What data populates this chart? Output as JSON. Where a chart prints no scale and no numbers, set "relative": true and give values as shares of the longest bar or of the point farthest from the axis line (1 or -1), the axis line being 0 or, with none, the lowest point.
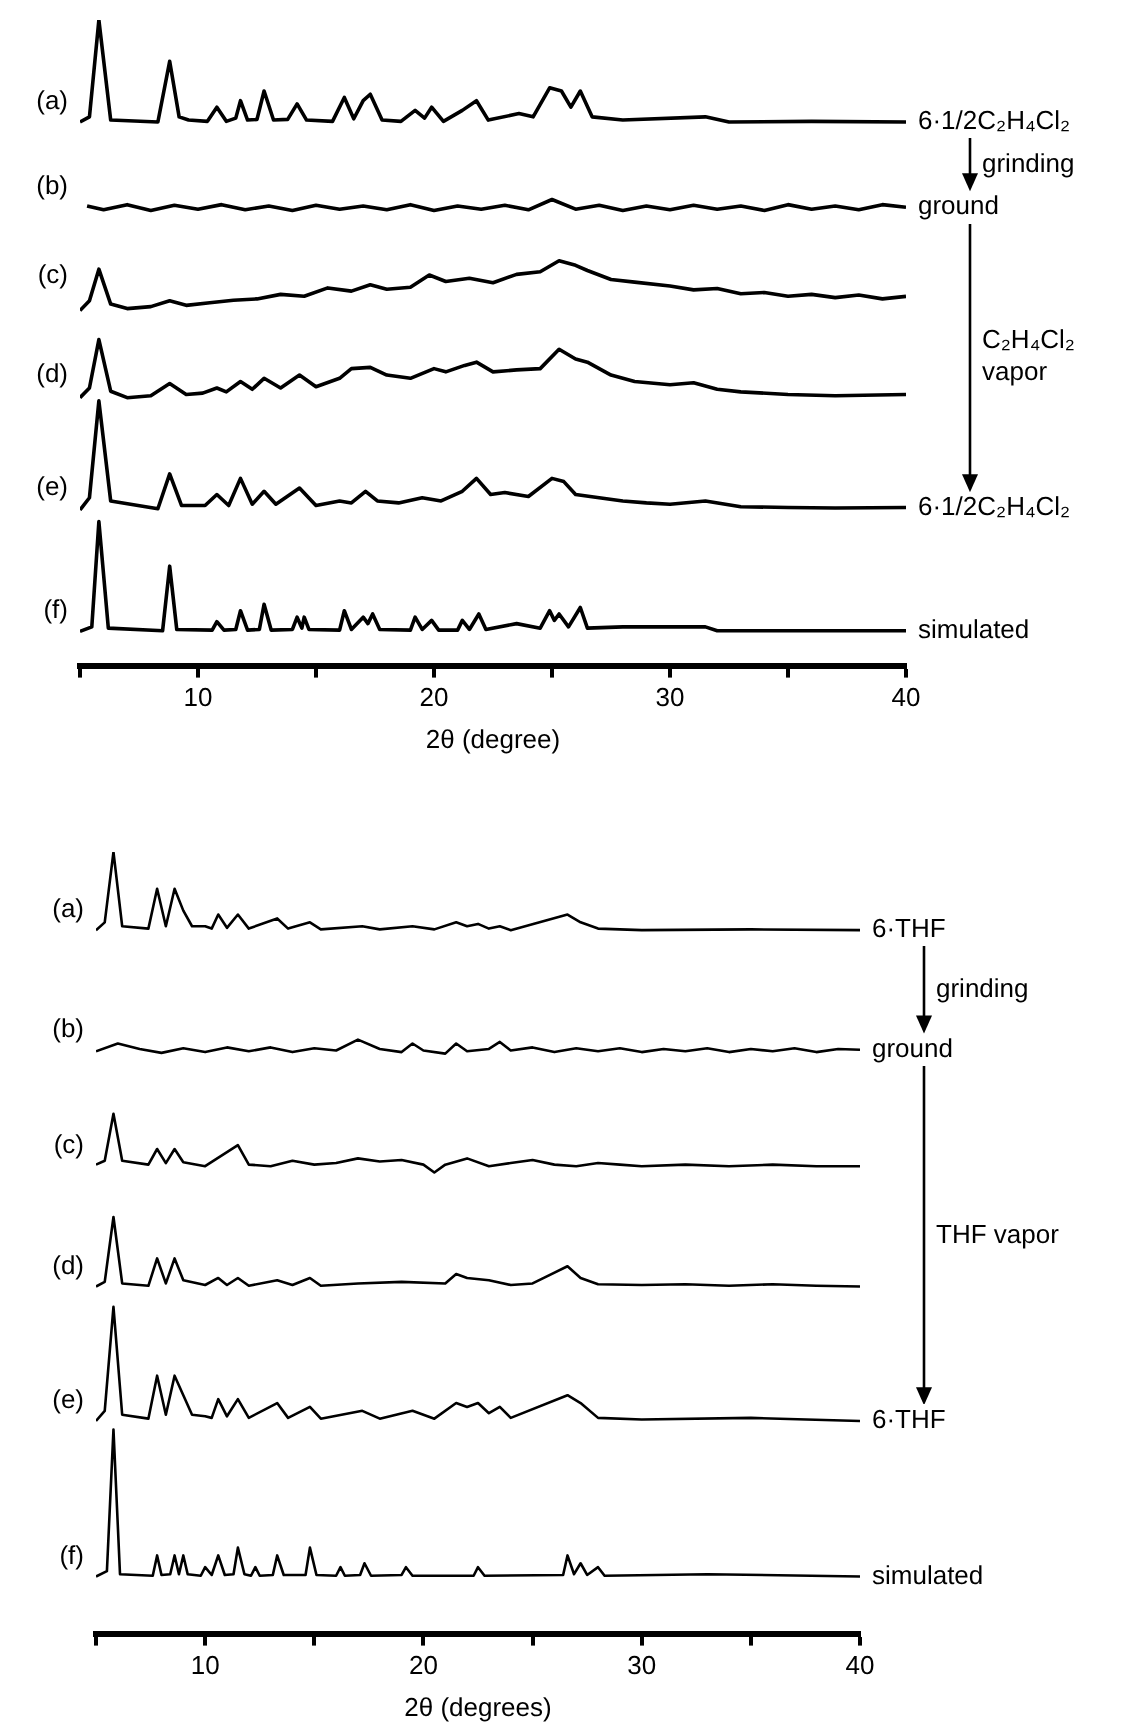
{
  "chart_data": [
    {
      "type": "line",
      "relative": true,
      "xlabel": "2θ (degree)",
      "xlim": [
        5,
        40
      ],
      "xticks": [
        {
          "value": 5,
          "label": null
        },
        10,
        {
          "value": 15,
          "label": null
        },
        20,
        {
          "value": 25,
          "label": null
        },
        30,
        {
          "value": 35,
          "label": null
        },
        40
      ],
      "annotations": [
        "6·1/2C₂H₄Cl₂",
        "grinding",
        "ground",
        "C₂H₄Cl₂ vapor",
        "6·1/2C₂H₄Cl₂",
        "simulated"
      ],
      "series": [
        {
          "name": "(a)",
          "color": "#000000",
          "x": [
            5,
            5.4,
            5.8,
            6.3,
            8.3,
            8.8,
            9.2,
            9.6,
            10.4,
            10.8,
            11.2,
            11.6,
            11.8,
            12.1,
            12.5,
            12.8,
            13.2,
            13.8,
            14.2,
            14.6,
            15.7,
            16.2,
            16.6,
            17.0,
            17.3,
            17.8,
            18.6,
            19.2,
            19.6,
            19.9,
            20.4,
            21.2,
            21.8,
            22.3,
            23.6,
            24.2,
            24.9,
            25.4,
            25.8,
            26.2,
            26.7,
            28,
            31.5,
            32.5,
            36,
            40
          ],
          "values": [
            0.842,
            0.85,
            1.0,
            0.845,
            0.842,
            0.936,
            0.85,
            0.845,
            0.843,
            0.865,
            0.843,
            0.848,
            0.875,
            0.845,
            0.846,
            0.89,
            0.845,
            0.846,
            0.87,
            0.845,
            0.843,
            0.88,
            0.847,
            0.875,
            0.885,
            0.845,
            0.843,
            0.86,
            0.848,
            0.865,
            0.843,
            0.86,
            0.875,
            0.845,
            0.855,
            0.85,
            0.895,
            0.89,
            0.865,
            0.89,
            0.85,
            0.845,
            0.85,
            0.842,
            0.843,
            0.842
          ]
        },
        {
          "name": "(b)",
          "color": "#000000",
          "x": [
            5.3,
            6,
            7,
            8,
            9,
            10,
            11,
            12,
            13,
            14,
            15,
            16,
            17,
            18,
            19,
            20,
            21,
            22,
            23,
            24,
            25,
            26,
            27,
            28,
            29,
            30,
            31,
            32,
            33,
            34,
            35,
            36,
            37,
            38,
            39,
            40
          ],
          "values": [
            0.712,
            0.706,
            0.714,
            0.705,
            0.713,
            0.707,
            0.714,
            0.706,
            0.712,
            0.705,
            0.713,
            0.707,
            0.712,
            0.706,
            0.714,
            0.705,
            0.712,
            0.707,
            0.713,
            0.706,
            0.722,
            0.707,
            0.713,
            0.705,
            0.712,
            0.706,
            0.713,
            0.707,
            0.712,
            0.705,
            0.714,
            0.707,
            0.712,
            0.706,
            0.714,
            0.71
          ]
        },
        {
          "name": "(c)",
          "color": "#000000",
          "x": [
            5,
            5.4,
            5.8,
            6.3,
            7,
            8,
            8.8,
            9.5,
            10.5,
            11.5,
            12.5,
            13.5,
            14.5,
            15.5,
            16.5,
            17.3,
            18,
            19,
            19.8,
            20.5,
            21.5,
            22.5,
            23.5,
            24.5,
            25.3,
            26,
            26.5,
            27.5,
            28.5,
            30,
            31,
            32,
            33,
            34,
            35,
            36,
            37,
            38,
            39,
            40
          ],
          "values": [
            0.55,
            0.565,
            0.614,
            0.56,
            0.553,
            0.556,
            0.565,
            0.558,
            0.562,
            0.566,
            0.568,
            0.575,
            0.572,
            0.585,
            0.58,
            0.59,
            0.583,
            0.586,
            0.605,
            0.595,
            0.6,
            0.593,
            0.606,
            0.61,
            0.627,
            0.62,
            0.612,
            0.598,
            0.594,
            0.588,
            0.582,
            0.584,
            0.576,
            0.578,
            0.572,
            0.575,
            0.57,
            0.574,
            0.568,
            0.572
          ]
        },
        {
          "name": "(d)",
          "color": "#000000",
          "x": [
            5,
            5.4,
            5.8,
            6.3,
            7,
            8,
            8.8,
            9.5,
            10.2,
            10.8,
            11.2,
            11.8,
            12.3,
            12.8,
            13.5,
            14.3,
            15,
            16,
            16.5,
            17.3,
            18,
            19,
            20,
            20.5,
            21.3,
            21.8,
            22.5,
            23.5,
            24.5,
            25.3,
            26,
            26.5,
            27.5,
            28.5,
            30,
            31,
            32,
            33,
            35,
            37,
            40
          ],
          "values": [
            0.415,
            0.43,
            0.505,
            0.425,
            0.415,
            0.418,
            0.437,
            0.42,
            0.422,
            0.43,
            0.424,
            0.44,
            0.428,
            0.445,
            0.43,
            0.45,
            0.432,
            0.445,
            0.46,
            0.462,
            0.45,
            0.445,
            0.46,
            0.455,
            0.465,
            0.47,
            0.455,
            0.458,
            0.46,
            0.49,
            0.475,
            0.47,
            0.45,
            0.44,
            0.435,
            0.438,
            0.428,
            0.424,
            0.42,
            0.418,
            0.42
          ]
        },
        {
          "name": "(e)",
          "color": "#000000",
          "x": [
            5,
            5.4,
            5.8,
            6.3,
            8.3,
            8.8,
            9.3,
            10.3,
            10.8,
            11.3,
            11.8,
            12.3,
            12.8,
            13.3,
            14.3,
            15,
            16,
            16.5,
            17.1,
            17.6,
            18.5,
            19.5,
            20.3,
            21.2,
            21.8,
            22.4,
            23,
            24,
            25,
            25.5,
            26,
            27,
            28,
            29,
            30,
            31.5,
            33,
            35,
            37,
            40
          ],
          "values": [
            0.241,
            0.26,
            0.41,
            0.255,
            0.243,
            0.297,
            0.248,
            0.248,
            0.265,
            0.248,
            0.29,
            0.25,
            0.27,
            0.25,
            0.275,
            0.248,
            0.255,
            0.252,
            0.27,
            0.255,
            0.252,
            0.26,
            0.255,
            0.27,
            0.29,
            0.265,
            0.268,
            0.262,
            0.29,
            0.285,
            0.265,
            0.26,
            0.255,
            0.252,
            0.25,
            0.255,
            0.246,
            0.245,
            0.244,
            0.245
          ]
        },
        {
          "name": "(f)",
          "color": "#000000",
          "x": [
            5,
            5.5,
            5.8,
            6.2,
            8.5,
            8.8,
            9.1,
            10.6,
            10.8,
            11.1,
            11.6,
            11.8,
            12.1,
            12.6,
            12.8,
            13.1,
            14,
            14.2,
            14.4,
            14.5,
            14.7,
            16,
            16.2,
            16.5,
            17.0,
            17.2,
            17.4,
            17.7,
            19,
            19.2,
            19.5,
            19.9,
            20.2,
            21,
            21.2,
            21.5,
            21.9,
            22.2,
            23.5,
            24.5,
            24.9,
            25.1,
            25.3,
            25.7,
            26.2,
            26.5,
            28,
            31.5,
            32,
            40
          ],
          "values": [
            0.053,
            0.06,
            0.223,
            0.058,
            0.054,
            0.154,
            0.056,
            0.055,
            0.068,
            0.055,
            0.056,
            0.085,
            0.055,
            0.056,
            0.095,
            0.055,
            0.056,
            0.075,
            0.058,
            0.075,
            0.056,
            0.055,
            0.085,
            0.056,
            0.075,
            0.065,
            0.08,
            0.056,
            0.055,
            0.075,
            0.056,
            0.07,
            0.055,
            0.055,
            0.07,
            0.056,
            0.08,
            0.056,
            0.065,
            0.058,
            0.085,
            0.07,
            0.08,
            0.06,
            0.09,
            0.058,
            0.06,
            0.06,
            0.054,
            0.054
          ]
        }
      ]
    },
    {
      "type": "line",
      "relative": true,
      "xlabel": "2θ (degrees)",
      "xlim": [
        5,
        40
      ],
      "xticks": [
        {
          "value": 5,
          "label": null
        },
        10,
        {
          "value": 15,
          "label": null
        },
        20,
        {
          "value": 25,
          "label": null
        },
        30,
        {
          "value": 35,
          "label": null
        },
        40
      ],
      "annotations": [
        "6·THF",
        "grinding",
        "ground",
        "THF vapor",
        "6·THF",
        "simulated"
      ],
      "series": [
        {
          "name": "(a)",
          "color": "#000000",
          "x": [
            5,
            5.4,
            5.8,
            6.2,
            7.4,
            7.8,
            8.2,
            8.6,
            9.0,
            9.4,
            10.0,
            10.3,
            10.6,
            11.0,
            11.5,
            12,
            13.3,
            13.8,
            14.8,
            15.3,
            17.2,
            18,
            19.5,
            20.5,
            21.5,
            22,
            22.5,
            23,
            23.5,
            24,
            26.6,
            27.2,
            28,
            30,
            35,
            40
          ],
          "values": [
            0.9,
            0.91,
            1.0,
            0.905,
            0.902,
            0.953,
            0.905,
            0.953,
            0.925,
            0.905,
            0.905,
            0.902,
            0.92,
            0.903,
            0.92,
            0.902,
            0.915,
            0.902,
            0.91,
            0.901,
            0.905,
            0.901,
            0.905,
            0.901,
            0.91,
            0.905,
            0.908,
            0.902,
            0.905,
            0.9,
            0.92,
            0.91,
            0.902,
            0.9,
            0.901,
            0.9
          ]
        },
        {
          "name": "(b)",
          "color": "#000000",
          "x": [
            5,
            6,
            7,
            8,
            9,
            10,
            11,
            12,
            13,
            14,
            15,
            16,
            17,
            18,
            19,
            19.5,
            20,
            21,
            21.5,
            22,
            23,
            23.5,
            24,
            25,
            26,
            27,
            28,
            29,
            30,
            31,
            32,
            33,
            34,
            35,
            36,
            37,
            38,
            39,
            40
          ],
          "values": [
            0.745,
            0.755,
            0.748,
            0.743,
            0.749,
            0.744,
            0.75,
            0.745,
            0.75,
            0.744,
            0.749,
            0.746,
            0.76,
            0.748,
            0.744,
            0.755,
            0.746,
            0.742,
            0.755,
            0.745,
            0.748,
            0.757,
            0.746,
            0.75,
            0.744,
            0.749,
            0.745,
            0.749,
            0.744,
            0.748,
            0.745,
            0.749,
            0.744,
            0.748,
            0.745,
            0.749,
            0.744,
            0.748,
            0.747
          ]
        },
        {
          "name": "(c)",
          "color": "#000000",
          "x": [
            5,
            5.4,
            5.8,
            6.2,
            7.4,
            7.8,
            8.2,
            8.6,
            9,
            10,
            11.5,
            12,
            13,
            14,
            15,
            16,
            17,
            18,
            19,
            20,
            20.5,
            21,
            22,
            23,
            24,
            25,
            26,
            27,
            28,
            29,
            30,
            32,
            34,
            36,
            38,
            40
          ],
          "values": [
            0.6,
            0.605,
            0.665,
            0.605,
            0.6,
            0.62,
            0.602,
            0.62,
            0.603,
            0.598,
            0.625,
            0.6,
            0.598,
            0.605,
            0.6,
            0.602,
            0.608,
            0.604,
            0.606,
            0.6,
            0.59,
            0.6,
            0.608,
            0.598,
            0.602,
            0.606,
            0.6,
            0.598,
            0.602,
            0.6,
            0.598,
            0.6,
            0.598,
            0.6,
            0.598,
            0.598
          ]
        },
        {
          "name": "(d)",
          "color": "#000000",
          "x": [
            5,
            5.4,
            5.8,
            6.2,
            7.4,
            7.8,
            8.2,
            8.6,
            9,
            10,
            10.6,
            11,
            11.5,
            12,
            13.3,
            14,
            14.8,
            15.3,
            17,
            19,
            21,
            21.5,
            22,
            23,
            24,
            25,
            26.6,
            27.2,
            28,
            30,
            32,
            34,
            36,
            38,
            40
          ],
          "values": [
            0.444,
            0.45,
            0.533,
            0.448,
            0.445,
            0.48,
            0.448,
            0.48,
            0.452,
            0.446,
            0.455,
            0.446,
            0.455,
            0.445,
            0.452,
            0.446,
            0.455,
            0.445,
            0.448,
            0.45,
            0.448,
            0.46,
            0.455,
            0.452,
            0.446,
            0.448,
            0.47,
            0.455,
            0.447,
            0.446,
            0.447,
            0.445,
            0.447,
            0.445,
            0.444
          ]
        },
        {
          "name": "(e)",
          "color": "#000000",
          "x": [
            5,
            5.4,
            5.8,
            6.2,
            7.4,
            7.8,
            8.2,
            8.6,
            9.0,
            9.4,
            10.0,
            10.3,
            10.6,
            11.0,
            11.5,
            12,
            13.3,
            13.8,
            14.8,
            15.3,
            17.2,
            18,
            19.5,
            20.5,
            21.5,
            22,
            22.5,
            23,
            23.5,
            24,
            26.6,
            27.2,
            28,
            30,
            35,
            40
          ],
          "values": [
            0.272,
            0.285,
            0.418,
            0.28,
            0.275,
            0.33,
            0.28,
            0.33,
            0.305,
            0.28,
            0.278,
            0.276,
            0.3,
            0.278,
            0.3,
            0.276,
            0.295,
            0.276,
            0.29,
            0.275,
            0.285,
            0.275,
            0.285,
            0.275,
            0.295,
            0.29,
            0.295,
            0.282,
            0.29,
            0.276,
            0.305,
            0.295,
            0.276,
            0.274,
            0.276,
            0.272
          ]
        },
        {
          "name": "(f)",
          "color": "#000000",
          "x": [
            5,
            5.5,
            5.8,
            6.1,
            7.6,
            7.8,
            8.0,
            8.4,
            8.6,
            8.8,
            9.0,
            9.2,
            9.8,
            10.0,
            10.3,
            10.6,
            10.9,
            11.3,
            11.5,
            11.8,
            12.1,
            12.3,
            12.5,
            13.1,
            13.3,
            13.6,
            14.6,
            14.8,
            15.1,
            16,
            16.2,
            16.4,
            17.1,
            17.3,
            17.6,
            19,
            19.2,
            19.5,
            22.3,
            22.5,
            22.8,
            26.4,
            26.6,
            26.9,
            27.2,
            27.5,
            28,
            28.3,
            33,
            40
          ],
          "values": [
            0.073,
            0.08,
            0.261,
            0.076,
            0.074,
            0.1,
            0.075,
            0.076,
            0.1,
            0.076,
            0.1,
            0.076,
            0.074,
            0.085,
            0.075,
            0.1,
            0.075,
            0.076,
            0.11,
            0.076,
            0.074,
            0.085,
            0.074,
            0.075,
            0.1,
            0.075,
            0.075,
            0.11,
            0.075,
            0.074,
            0.085,
            0.074,
            0.075,
            0.09,
            0.074,
            0.075,
            0.085,
            0.074,
            0.074,
            0.085,
            0.074,
            0.075,
            0.1,
            0.076,
            0.09,
            0.075,
            0.085,
            0.074,
            0.076,
            0.073
          ]
        }
      ]
    }
  ]
}
